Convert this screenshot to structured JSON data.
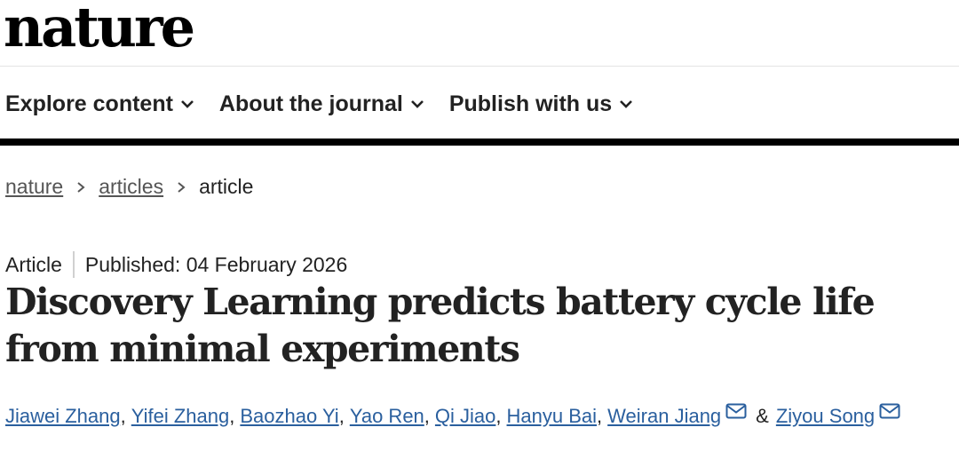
{
  "logo": "nature",
  "nav": {
    "items": [
      {
        "label": "Explore content",
        "icon": "chevron-down-icon"
      },
      {
        "label": "About the journal",
        "icon": "chevron-down-icon"
      },
      {
        "label": "Publish with us",
        "icon": "chevron-down-icon"
      }
    ]
  },
  "breadcrumb": {
    "items": [
      "nature",
      "articles"
    ],
    "current": "article",
    "separator_icon": "chevron-right-icon"
  },
  "article": {
    "type": "Article",
    "published": "Published: 04 February 2026",
    "title": "Discovery Learning predicts battery cycle life from minimal experiments",
    "authors": [
      {
        "name": "Jiawei Zhang"
      },
      {
        "name": "Yifei Zhang"
      },
      {
        "name": "Baozhao Yi"
      },
      {
        "name": "Yao Ren"
      },
      {
        "name": "Qi Jiao"
      },
      {
        "name": "Hanyu Bai"
      },
      {
        "name": "Weiran Jiang",
        "icon": "mail-icon"
      },
      {
        "name": "Ziyou Song",
        "icon": "mail-icon"
      }
    ],
    "authors_joiner": "&"
  },
  "colors": {
    "text": "#222222",
    "link": "#2a5f9e",
    "breadcrumb_link": "#555555",
    "rule": "#000000"
  }
}
